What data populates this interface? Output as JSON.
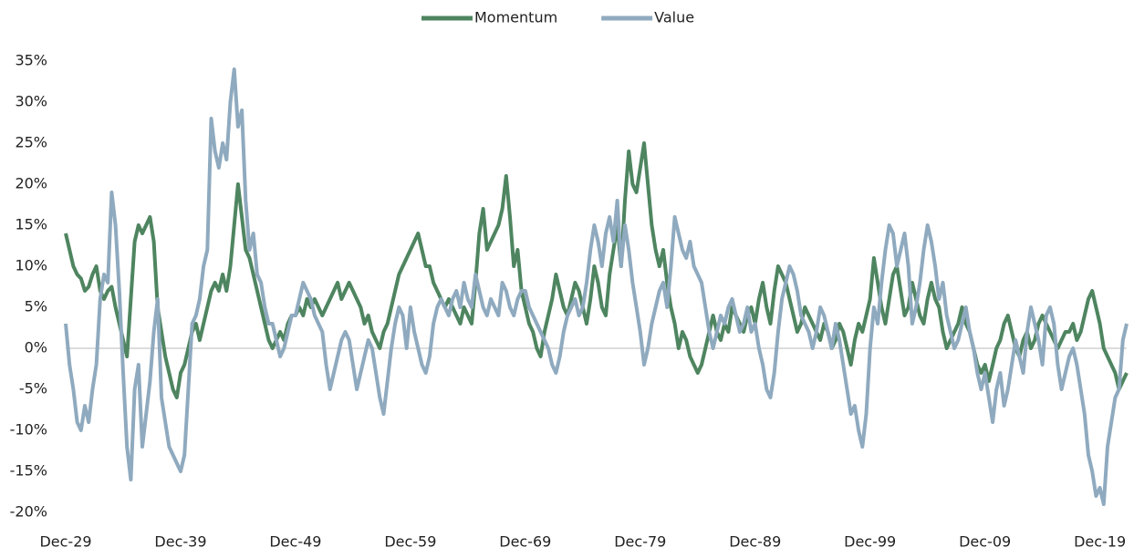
{
  "chart_data": {
    "type": "line",
    "legend": "top",
    "categories": [
      "Dec-29",
      null,
      null,
      null,
      null,
      null,
      null,
      null,
      null,
      null,
      null,
      null,
      null,
      null,
      null,
      null,
      null,
      null,
      null,
      null,
      null,
      null,
      null,
      null,
      null,
      null,
      null,
      null,
      null,
      null,
      "Dec-39",
      null,
      null,
      null,
      null,
      null,
      null,
      null,
      null,
      null,
      null,
      null,
      null,
      null,
      null,
      null,
      null,
      null,
      null,
      null,
      null,
      null,
      null,
      null,
      null,
      null,
      null,
      null,
      null,
      null,
      "Dec-49",
      null,
      null,
      null,
      null,
      null,
      null,
      null,
      null,
      null,
      null,
      null,
      null,
      null,
      null,
      null,
      null,
      null,
      null,
      null,
      null,
      null,
      null,
      null,
      null,
      null,
      null,
      null,
      null,
      null,
      "Dec-59",
      null,
      null,
      null,
      null,
      null,
      null,
      null,
      null,
      null,
      null,
      null,
      null,
      null,
      null,
      null,
      null,
      null,
      null,
      null,
      null,
      null,
      null,
      null,
      null,
      null,
      null,
      null,
      null,
      null,
      "Dec-69",
      null,
      null,
      null,
      null,
      null,
      null,
      null,
      null,
      null,
      null,
      null,
      null,
      null,
      null,
      null,
      null,
      null,
      null,
      null,
      null,
      null,
      null,
      null,
      null,
      null,
      null,
      null,
      null,
      null,
      "Dec-79",
      null,
      null,
      null,
      null,
      null,
      null,
      null,
      null,
      null,
      null,
      null,
      null,
      null,
      null,
      null,
      null,
      null,
      null,
      null,
      null,
      null,
      null,
      null,
      null,
      null,
      null,
      null,
      null,
      null,
      "Dec-89",
      null,
      null,
      null,
      null,
      null,
      null,
      null,
      null,
      null,
      null,
      null,
      null,
      null,
      null,
      null,
      null,
      null,
      null,
      null,
      null,
      null,
      null,
      null,
      null,
      null,
      null,
      null,
      null,
      null,
      "Dec-99",
      null,
      null,
      null,
      null,
      null,
      null,
      null,
      null,
      null,
      null,
      null,
      null,
      null,
      null,
      null,
      null,
      null,
      null,
      null,
      null,
      null,
      null,
      null,
      null,
      null,
      null,
      null,
      null,
      null,
      "Dec-09",
      null,
      null,
      null,
      null,
      null,
      null,
      null,
      null,
      null,
      null,
      null,
      null,
      null,
      null,
      null,
      null,
      null,
      null,
      null,
      null,
      null,
      null,
      null,
      null,
      null,
      null,
      null,
      null,
      null,
      "Dec-19",
      null,
      null,
      null,
      null,
      null,
      null,
      null
    ],
    "series": [
      {
        "name": "Momentum",
        "color": "#4e8560",
        "values": [
          14,
          12,
          10,
          9,
          8.5,
          7,
          7.5,
          9,
          10,
          7,
          6,
          7,
          7.5,
          5,
          3,
          1,
          -1,
          6,
          13,
          15,
          14,
          15,
          16,
          13,
          5,
          2,
          -1,
          -3,
          -5,
          -6,
          -3,
          -2,
          0,
          2,
          3,
          1,
          3,
          5,
          7,
          8,
          7,
          9,
          7,
          10,
          15,
          20,
          16,
          12,
          11,
          9,
          7,
          5,
          3,
          1,
          0,
          1,
          2,
          1,
          3,
          4,
          4,
          5,
          4,
          6,
          5,
          6,
          5,
          4,
          5,
          6,
          7,
          8,
          6,
          7,
          8,
          7,
          6,
          5,
          3,
          4,
          2,
          1,
          0,
          2,
          3,
          5,
          7,
          9,
          10,
          11,
          12,
          13,
          14,
          12,
          10,
          10,
          8,
          7,
          6,
          5,
          6,
          5,
          4,
          3,
          5,
          4,
          3,
          8,
          14,
          17,
          12,
          13,
          14,
          15,
          17,
          21,
          16,
          10,
          12,
          7,
          5,
          3,
          2,
          0,
          -1,
          2,
          4,
          6,
          9,
          7,
          5,
          4,
          6,
          8,
          7,
          5,
          3,
          6,
          10,
          8,
          5,
          4,
          9,
          12,
          15,
          10,
          18,
          24,
          20,
          19,
          22,
          25,
          20,
          15,
          12,
          10,
          12,
          8,
          5,
          3,
          0,
          2,
          1,
          -1,
          -2,
          -3,
          -2,
          0,
          2,
          4,
          2,
          1,
          3,
          2,
          5,
          4,
          3,
          2,
          4,
          5,
          3,
          6,
          8,
          5,
          3,
          7,
          10,
          9,
          8,
          6,
          4,
          2,
          3,
          5,
          4,
          3,
          2,
          1,
          3,
          2,
          0,
          1,
          3,
          2,
          0,
          -2,
          1,
          3,
          2,
          4,
          6,
          11,
          8,
          5,
          3,
          6,
          9,
          10,
          7,
          4,
          5,
          8,
          6,
          4,
          3,
          6,
          8,
          6,
          5,
          2,
          0,
          1,
          2,
          3,
          5,
          3,
          2,
          0,
          -2,
          -3,
          -2,
          -4,
          -2,
          0,
          1,
          3,
          4,
          2,
          0,
          -1,
          1,
          2,
          0,
          1,
          3,
          4,
          3,
          2,
          1,
          0,
          1,
          2,
          2,
          3,
          1,
          2,
          4,
          6,
          7,
          5,
          3,
          0,
          -1,
          -2,
          -3,
          -5,
          -4,
          -3
        ]
      },
      {
        "name": "Value",
        "color": "#8faabf",
        "values": [
          3,
          -2,
          -5,
          -9,
          -10,
          -7,
          -9,
          -5,
          -2,
          6,
          9,
          8,
          19,
          15,
          7,
          -3,
          -12,
          -16,
          -5,
          -2,
          -12,
          -8,
          -4,
          2,
          6,
          -6,
          -9,
          -12,
          -13,
          -14,
          -15,
          -13,
          -5,
          3,
          4,
          6,
          10,
          12,
          28,
          24,
          22,
          25,
          23,
          30,
          34,
          27,
          29,
          18,
          12,
          14,
          9,
          8,
          5,
          3,
          3,
          1,
          -1,
          0,
          2,
          4,
          4,
          6,
          8,
          7,
          6,
          4,
          3,
          2,
          -2,
          -5,
          -3,
          -1,
          1,
          2,
          1,
          -2,
          -5,
          -3,
          -1,
          1,
          0,
          -3,
          -6,
          -8,
          -4,
          0,
          3,
          5,
          4,
          0,
          5,
          2,
          0,
          -2,
          -3,
          -1,
          3,
          5,
          6,
          5,
          4,
          6,
          7,
          5,
          8,
          6,
          5,
          9,
          7,
          5,
          4,
          6,
          5,
          4,
          8,
          7,
          5,
          4,
          6,
          7,
          7,
          5,
          4,
          3,
          2,
          1,
          0,
          -2,
          -3,
          -1,
          2,
          4,
          5,
          6,
          4,
          5,
          8,
          12,
          15,
          13,
          10,
          14,
          16,
          13,
          18,
          10,
          15,
          12,
          8,
          5,
          2,
          -2,
          0,
          3,
          5,
          7,
          8,
          5,
          10,
          16,
          14,
          12,
          11,
          13,
          10,
          9,
          8,
          5,
          2,
          0,
          2,
          4,
          3,
          5,
          6,
          4,
          2,
          3,
          5,
          2,
          3,
          0,
          -2,
          -5,
          -6,
          -3,
          2,
          6,
          8,
          10,
          9,
          7,
          4,
          3,
          2,
          0,
          2,
          5,
          4,
          2,
          0,
          3,
          1,
          -2,
          -5,
          -8,
          -7,
          -10,
          -12,
          -8,
          0,
          5,
          3,
          8,
          12,
          15,
          14,
          10,
          12,
          14,
          10,
          3,
          5,
          8,
          12,
          15,
          13,
          10,
          6,
          8,
          4,
          2,
          0,
          1,
          3,
          5,
          2,
          0,
          -3,
          -5,
          -3,
          -6,
          -9,
          -5,
          -3,
          -7,
          -5,
          -2,
          1,
          -1,
          -3,
          2,
          5,
          3,
          1,
          -2,
          4,
          5,
          3,
          -2,
          -5,
          -3,
          -1,
          0,
          -2,
          -5,
          -8,
          -13,
          -15,
          -18,
          -17,
          -19,
          -12,
          -9,
          -6,
          -5,
          1,
          3
        ]
      }
    ],
    "ylim": [
      -20,
      35
    ],
    "yticks": [
      {
        "value": -20,
        "label": "-20%"
      },
      {
        "value": -15,
        "label": "-15%"
      },
      {
        "value": -10,
        "label": "-10%"
      },
      {
        "value": -5,
        "label": "-5%"
      },
      {
        "value": 0,
        "label": "0%"
      },
      {
        "value": 5,
        "label": "5%"
      },
      {
        "value": 10,
        "label": "10%"
      },
      {
        "value": 15,
        "label": "15%"
      },
      {
        "value": 20,
        "label": "20%"
      },
      {
        "value": 25,
        "label": "25%"
      },
      {
        "value": 30,
        "label": "30%"
      },
      {
        "value": 35,
        "label": "35%"
      }
    ],
    "grid": false
  }
}
